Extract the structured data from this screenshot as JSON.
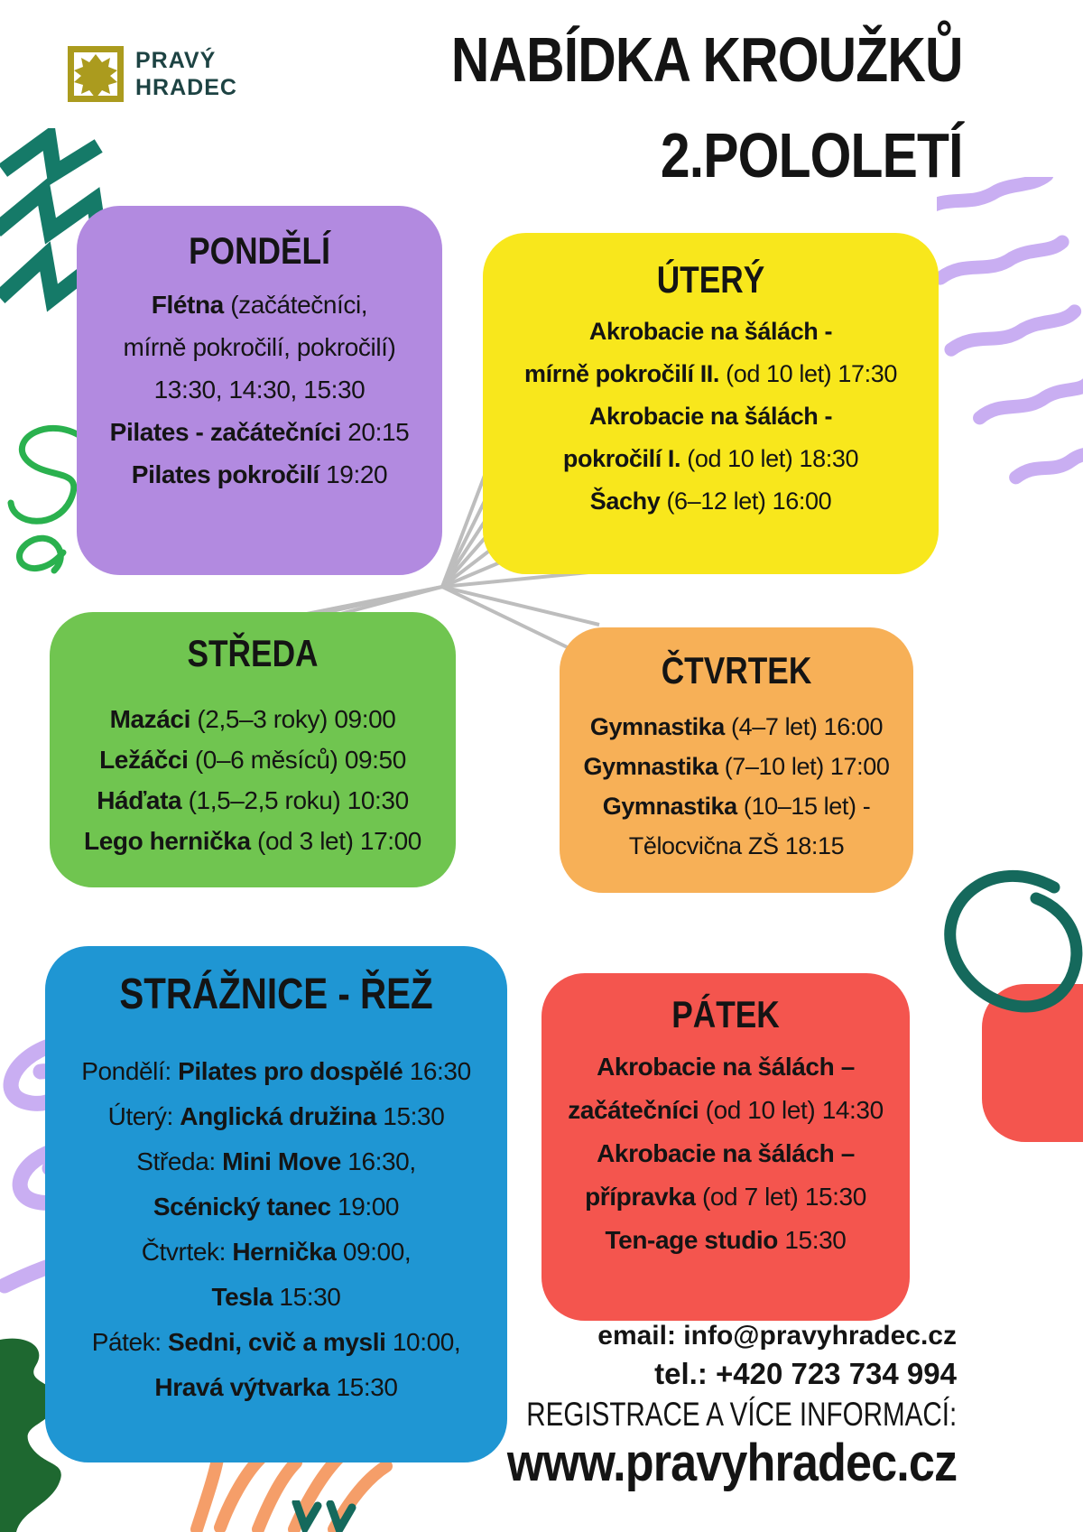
{
  "header": {
    "logo_line1": "PRAVÝ",
    "logo_line2": "HRADEC",
    "title_line1": "NABÍDKA KROUŽKŮ",
    "title_line2": "2.POLOLETÍ"
  },
  "boxes": {
    "pondeli": {
      "title": "PONDĚLÍ",
      "color": "#b28ae0",
      "lines": [
        [
          {
            "t": "Flétna ",
            "b": true
          },
          {
            "t": "(začátečníci,",
            "b": false
          }
        ],
        [
          {
            "t": "mírně pokročilí, pokročilí)",
            "b": false
          }
        ],
        [
          {
            "t": "13:30, 14:30, 15:30",
            "b": false
          }
        ],
        [
          {
            "t": "Pilates - začátečníci ",
            "b": true
          },
          {
            "t": "20:15",
            "b": false
          }
        ],
        [
          {
            "t": "Pilates pokročilí ",
            "b": true
          },
          {
            "t": "19:20",
            "b": false
          }
        ]
      ]
    },
    "utery": {
      "title": "ÚTERÝ",
      "color": "#f8e71c",
      "lines": [
        [
          {
            "t": "Akrobacie na šálách -",
            "b": true
          }
        ],
        [
          {
            "t": "mírně pokročilí II. ",
            "b": true
          },
          {
            "t": "(od 10 let) 17:30",
            "b": false
          }
        ],
        [
          {
            "t": "Akrobacie na šálách -",
            "b": true
          }
        ],
        [
          {
            "t": "pokročilí I. ",
            "b": true
          },
          {
            "t": "(od 10 let) 18:30",
            "b": false
          }
        ],
        [
          {
            "t": "Šachy ",
            "b": true
          },
          {
            "t": "(6–12 let) 16:00",
            "b": false
          }
        ]
      ]
    },
    "streda": {
      "title": "STŘEDA",
      "color": "#70c550",
      "lines": [
        [
          {
            "t": "Mazáci ",
            "b": true
          },
          {
            "t": "(2,5–3 roky) 09:00",
            "b": false
          }
        ],
        [
          {
            "t": "Ležáčci ",
            "b": true
          },
          {
            "t": "(0–6 měsíců) 09:50",
            "b": false
          }
        ],
        [
          {
            "t": "Háďata ",
            "b": true
          },
          {
            "t": "(1,5–2,5 roku) 10:30",
            "b": false
          }
        ],
        [
          {
            "t": "Lego hernička ",
            "b": true
          },
          {
            "t": "(od 3 let) 17:00",
            "b": false
          }
        ]
      ]
    },
    "ctvrtek": {
      "title": "ČTVRTEK",
      "color": "#f7b057",
      "lines": [
        [
          {
            "t": "Gymnastika ",
            "b": true
          },
          {
            "t": "(4–7 let) 16:00",
            "b": false
          }
        ],
        [
          {
            "t": "Gymnastika ",
            "b": true
          },
          {
            "t": "(7–10 let) 17:00",
            "b": false
          }
        ],
        [
          {
            "t": "Gymnastika ",
            "b": true
          },
          {
            "t": "(10–15 let) -",
            "b": false
          }
        ],
        [
          {
            "t": "Tělocvična ZŠ 18:15",
            "b": false
          }
        ]
      ]
    },
    "straznice": {
      "title": "STRÁŽNICE - ŘEŽ",
      "color": "#1f96d3",
      "lines": [
        [
          {
            "t": "Pondělí: ",
            "b": false
          },
          {
            "t": "Pilates pro dospělé ",
            "b": true
          },
          {
            "t": "16:30",
            "b": false
          }
        ],
        [
          {
            "t": "Úterý: ",
            "b": false
          },
          {
            "t": "Anglická družina ",
            "b": true
          },
          {
            "t": "15:30",
            "b": false
          }
        ],
        [
          {
            "t": "Středa: ",
            "b": false
          },
          {
            "t": "Mini Move ",
            "b": true
          },
          {
            "t": "16:30,",
            "b": false
          }
        ],
        [
          {
            "t": "Scénický tanec ",
            "b": true
          },
          {
            "t": "19:00",
            "b": false
          }
        ],
        [
          {
            "t": "Čtvrtek: ",
            "b": false
          },
          {
            "t": "Hernička ",
            "b": true
          },
          {
            "t": "09:00,",
            "b": false
          }
        ],
        [
          {
            "t": "Tesla ",
            "b": true
          },
          {
            "t": "15:30",
            "b": false
          }
        ],
        [
          {
            "t": "Pátek: ",
            "b": false
          },
          {
            "t": "Sedni, cvič a mysli ",
            "b": true
          },
          {
            "t": "10:00,",
            "b": false
          }
        ],
        [
          {
            "t": "Hravá výtvarka ",
            "b": true
          },
          {
            "t": "15:30",
            "b": false
          }
        ]
      ]
    },
    "patek": {
      "title": "PÁTEK",
      "color": "#f4554e",
      "lines": [
        [
          {
            "t": "Akrobacie na šálách –",
            "b": true
          }
        ],
        [
          {
            "t": "začátečníci ",
            "b": true
          },
          {
            "t": "(od 10 let) 14:30",
            "b": false
          }
        ],
        [
          {
            "t": "Akrobacie na šálách –",
            "b": true
          }
        ],
        [
          {
            "t": "přípravka ",
            "b": true
          },
          {
            "t": "(od 7 let) 15:30",
            "b": false
          }
        ],
        [
          {
            "t": "Ten-age studio ",
            "b": true
          },
          {
            "t": "15:30",
            "b": false
          }
        ]
      ]
    }
  },
  "contact": {
    "email": "email: info@pravyhradec.cz",
    "phone": "tel.: +420 723 734 994",
    "registration": "REGISTRACE A VÍCE INFORMACÍ:",
    "website": "www.pravyhradec.cz"
  },
  "palette": {
    "logo_gold": "#ab9b1e",
    "logo_text": "#1d4343",
    "teal_dark": "#15695c",
    "teal_zigzag": "#157a68",
    "green_bright": "#2ab14e",
    "green_dark": "#1e6830",
    "lavender": "#c9aef2",
    "orange_scribble": "#f59e69",
    "connector_gray": "#bdbdbd"
  }
}
